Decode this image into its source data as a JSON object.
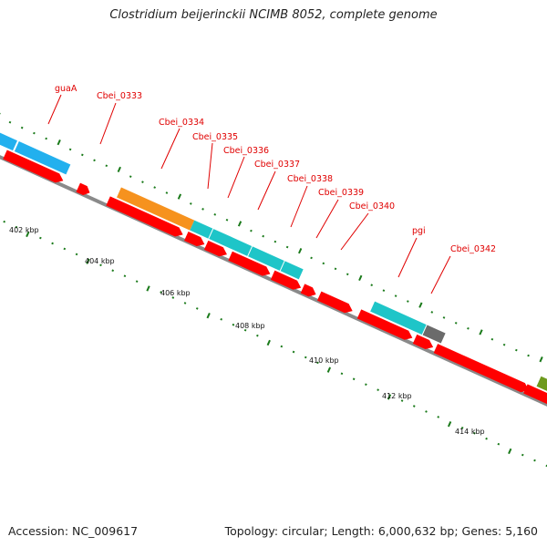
{
  "title": "Clostridium beijerinckii NCIMB 8052, complete genome",
  "footer": {
    "accession": "Accession: NC_009617",
    "summary": "Topology: circular; Length: 6,000,632 bp; Genes: 5,160"
  },
  "colors": {
    "backbone": "#8a8a8a",
    "cds": "#ff0000",
    "cog_blue": "#22b0ee",
    "cog_orange": "#f6921e",
    "cog_cyan": "#1ec5c8",
    "cog_gray": "#6b6b6b",
    "cog_olive": "#6e9a1e",
    "tick": "#1a7a1a",
    "label": "#e00000"
  },
  "kbp_labels": [
    "402 kbp",
    "404 kbp",
    "406 kbp",
    "408 kbp",
    "410 kbp",
    "412 kbp",
    "414 kbp"
  ],
  "genes": [
    "guaA",
    "Cbei_0333",
    "Cbei_0334",
    "Cbei_0335",
    "Cbei_0336",
    "Cbei_0337",
    "Cbei_0338",
    "Cbei_0339",
    "Cbei_0340",
    "pgi",
    "Cbei_0342"
  ]
}
